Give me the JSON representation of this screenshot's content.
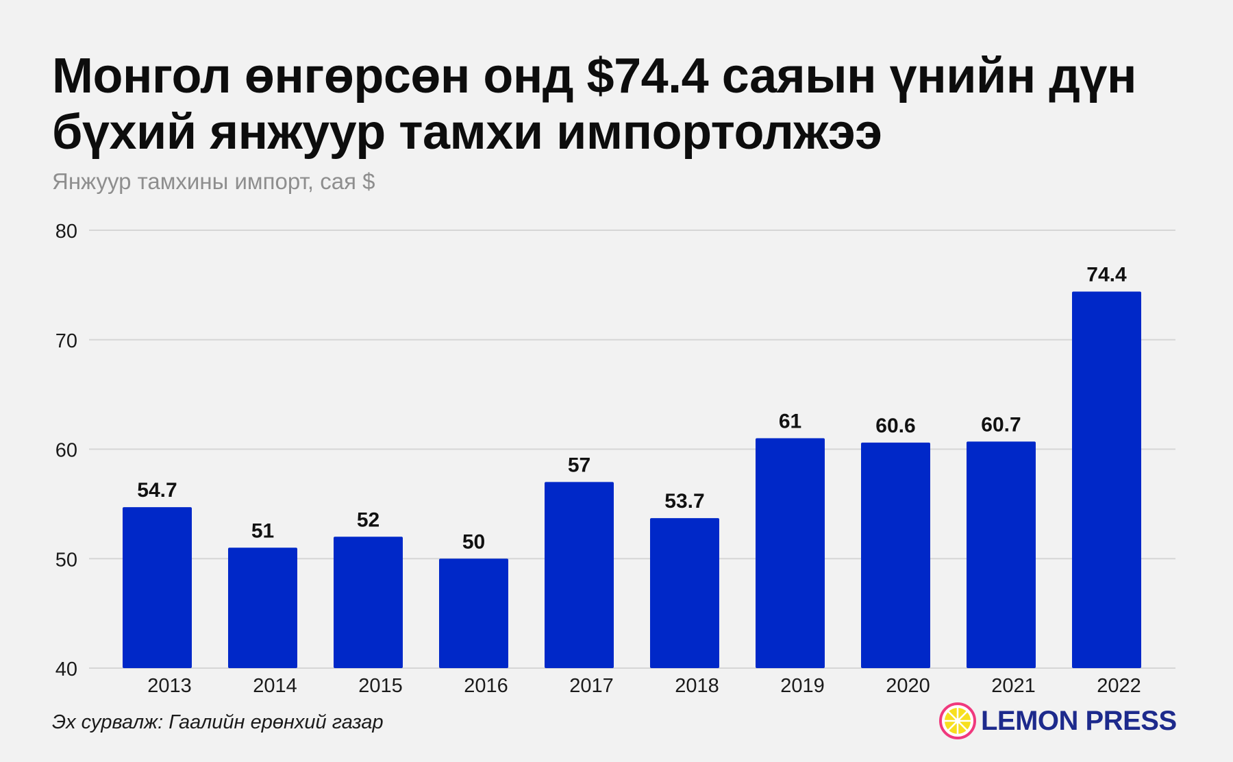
{
  "header": {
    "title": "Монгол өнгөрсөн онд $74.4 саяын үнийн дүн бүхий янжуур тамхи импортолжээ",
    "subtitle": "Янжуур тамхины импорт, сая $"
  },
  "chart_data": {
    "type": "bar",
    "title": "Монгол өнгөрсөн онд $74.4 саяын үнийн дүн бүхий янжуур тамхи импортолжээ",
    "subtitle": "Янжуур тамхины импорт, сая $",
    "xlabel": "",
    "ylabel": "",
    "categories": [
      "2013",
      "2014",
      "2015",
      "2016",
      "2017",
      "2018",
      "2019",
      "2020",
      "2021",
      "2022"
    ],
    "values": [
      54.7,
      51,
      52,
      50,
      57,
      53.7,
      61,
      60.6,
      60.7,
      74.4
    ],
    "value_labels": [
      "54.7",
      "51",
      "52",
      "50",
      "57",
      "53.7",
      "61",
      "60.6",
      "60.7",
      "74.4"
    ],
    "ylim": [
      40,
      80
    ],
    "yticks": [
      40,
      50,
      60,
      70,
      80
    ],
    "grid": true,
    "legend": "none",
    "bar_color": "#0028c8"
  },
  "footer": {
    "source": "Эх сурвалж: Гаалийн ерөнхий газар",
    "brand": "LEMON PRESS",
    "brand_icon": "lemon-logo-icon",
    "brand_color": "#1d2a8c"
  }
}
